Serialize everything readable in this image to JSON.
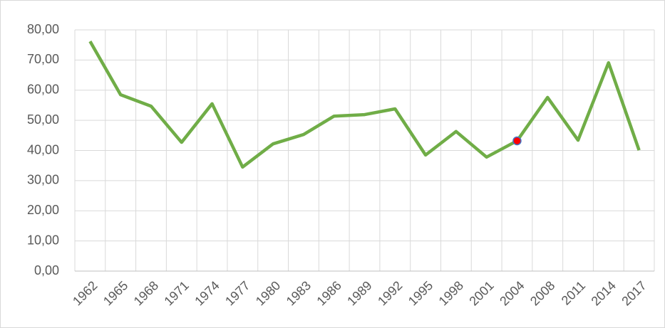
{
  "chart_data": {
    "type": "line",
    "categories": [
      "1962",
      "1965",
      "1968",
      "1971",
      "1974",
      "1977",
      "1980",
      "1983",
      "1986",
      "1989",
      "1992",
      "1995",
      "1998",
      "2001",
      "2004",
      "2008",
      "2011",
      "2014",
      "2017"
    ],
    "series": [
      {
        "name": null,
        "color": "#70ad47",
        "values": [
          76.2,
          58.5,
          54.7,
          42.7,
          55.5,
          34.5,
          42.2,
          45.3,
          51.4,
          51.9,
          53.8,
          38.5,
          46.3,
          37.8,
          43.2,
          57.6,
          43.4,
          69.1,
          40.1
        ]
      }
    ],
    "ylim": [
      0,
      80
    ],
    "yticks": [
      {
        "value": 0,
        "label": "0,00"
      },
      {
        "value": 10,
        "label": "10,00"
      },
      {
        "value": 20,
        "label": "20,00"
      },
      {
        "value": 30,
        "label": "30,00"
      },
      {
        "value": 40,
        "label": "40,00"
      },
      {
        "value": 50,
        "label": "50,00"
      },
      {
        "value": 60,
        "label": "60,00"
      },
      {
        "value": 70,
        "label": "70,00"
      },
      {
        "value": 80,
        "label": "80,00"
      }
    ],
    "grid": true,
    "highlight": {
      "category": "2004",
      "color": "#ff0000",
      "edgecolor": "#4472c4"
    }
  }
}
